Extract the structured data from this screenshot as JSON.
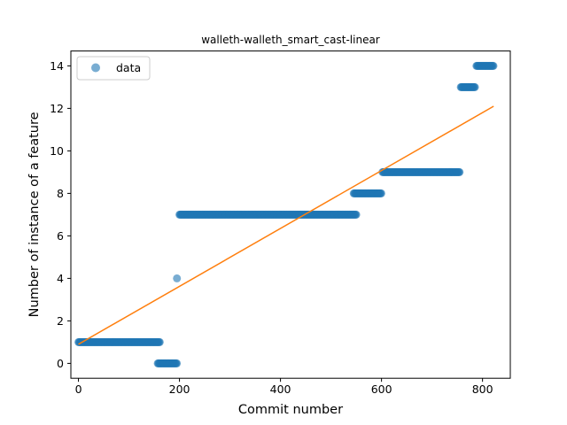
{
  "chart_data": {
    "type": "scatter",
    "title": "walleth-walleth_smart_cast-linear",
    "xlabel": "Commit number",
    "ylabel": "Number of instance of a feature",
    "xlim": [
      -15,
      855
    ],
    "ylim": [
      -0.7,
      14.7
    ],
    "xticks": [
      0,
      200,
      400,
      600,
      800
    ],
    "yticks": [
      0,
      2,
      4,
      6,
      8,
      10,
      12,
      14
    ],
    "grid": false,
    "legend": {
      "placement": "top-left",
      "entries": [
        "data"
      ]
    },
    "colors": {
      "data": "#1f77b4",
      "fit": "#ff7f0e"
    },
    "series": [
      {
        "name": "data",
        "kind": "scatter",
        "segments": [
          {
            "x_start": 0,
            "x_end": 162,
            "y": 1
          },
          {
            "x_start": 157,
            "x_end": 195,
            "y": 0
          },
          {
            "x_start": 195,
            "x_end": 195,
            "y": 4
          },
          {
            "x_start": 200,
            "x_end": 550,
            "y": 7
          },
          {
            "x_start": 545,
            "x_end": 600,
            "y": 8
          },
          {
            "x_start": 602,
            "x_end": 755,
            "y": 9
          },
          {
            "x_start": 757,
            "x_end": 785,
            "y": 13
          },
          {
            "x_start": 788,
            "x_end": 822,
            "y": 14
          }
        ]
      },
      {
        "name": "",
        "kind": "line",
        "x": [
          0,
          822
        ],
        "y": [
          0.9,
          12.1
        ]
      }
    ]
  }
}
